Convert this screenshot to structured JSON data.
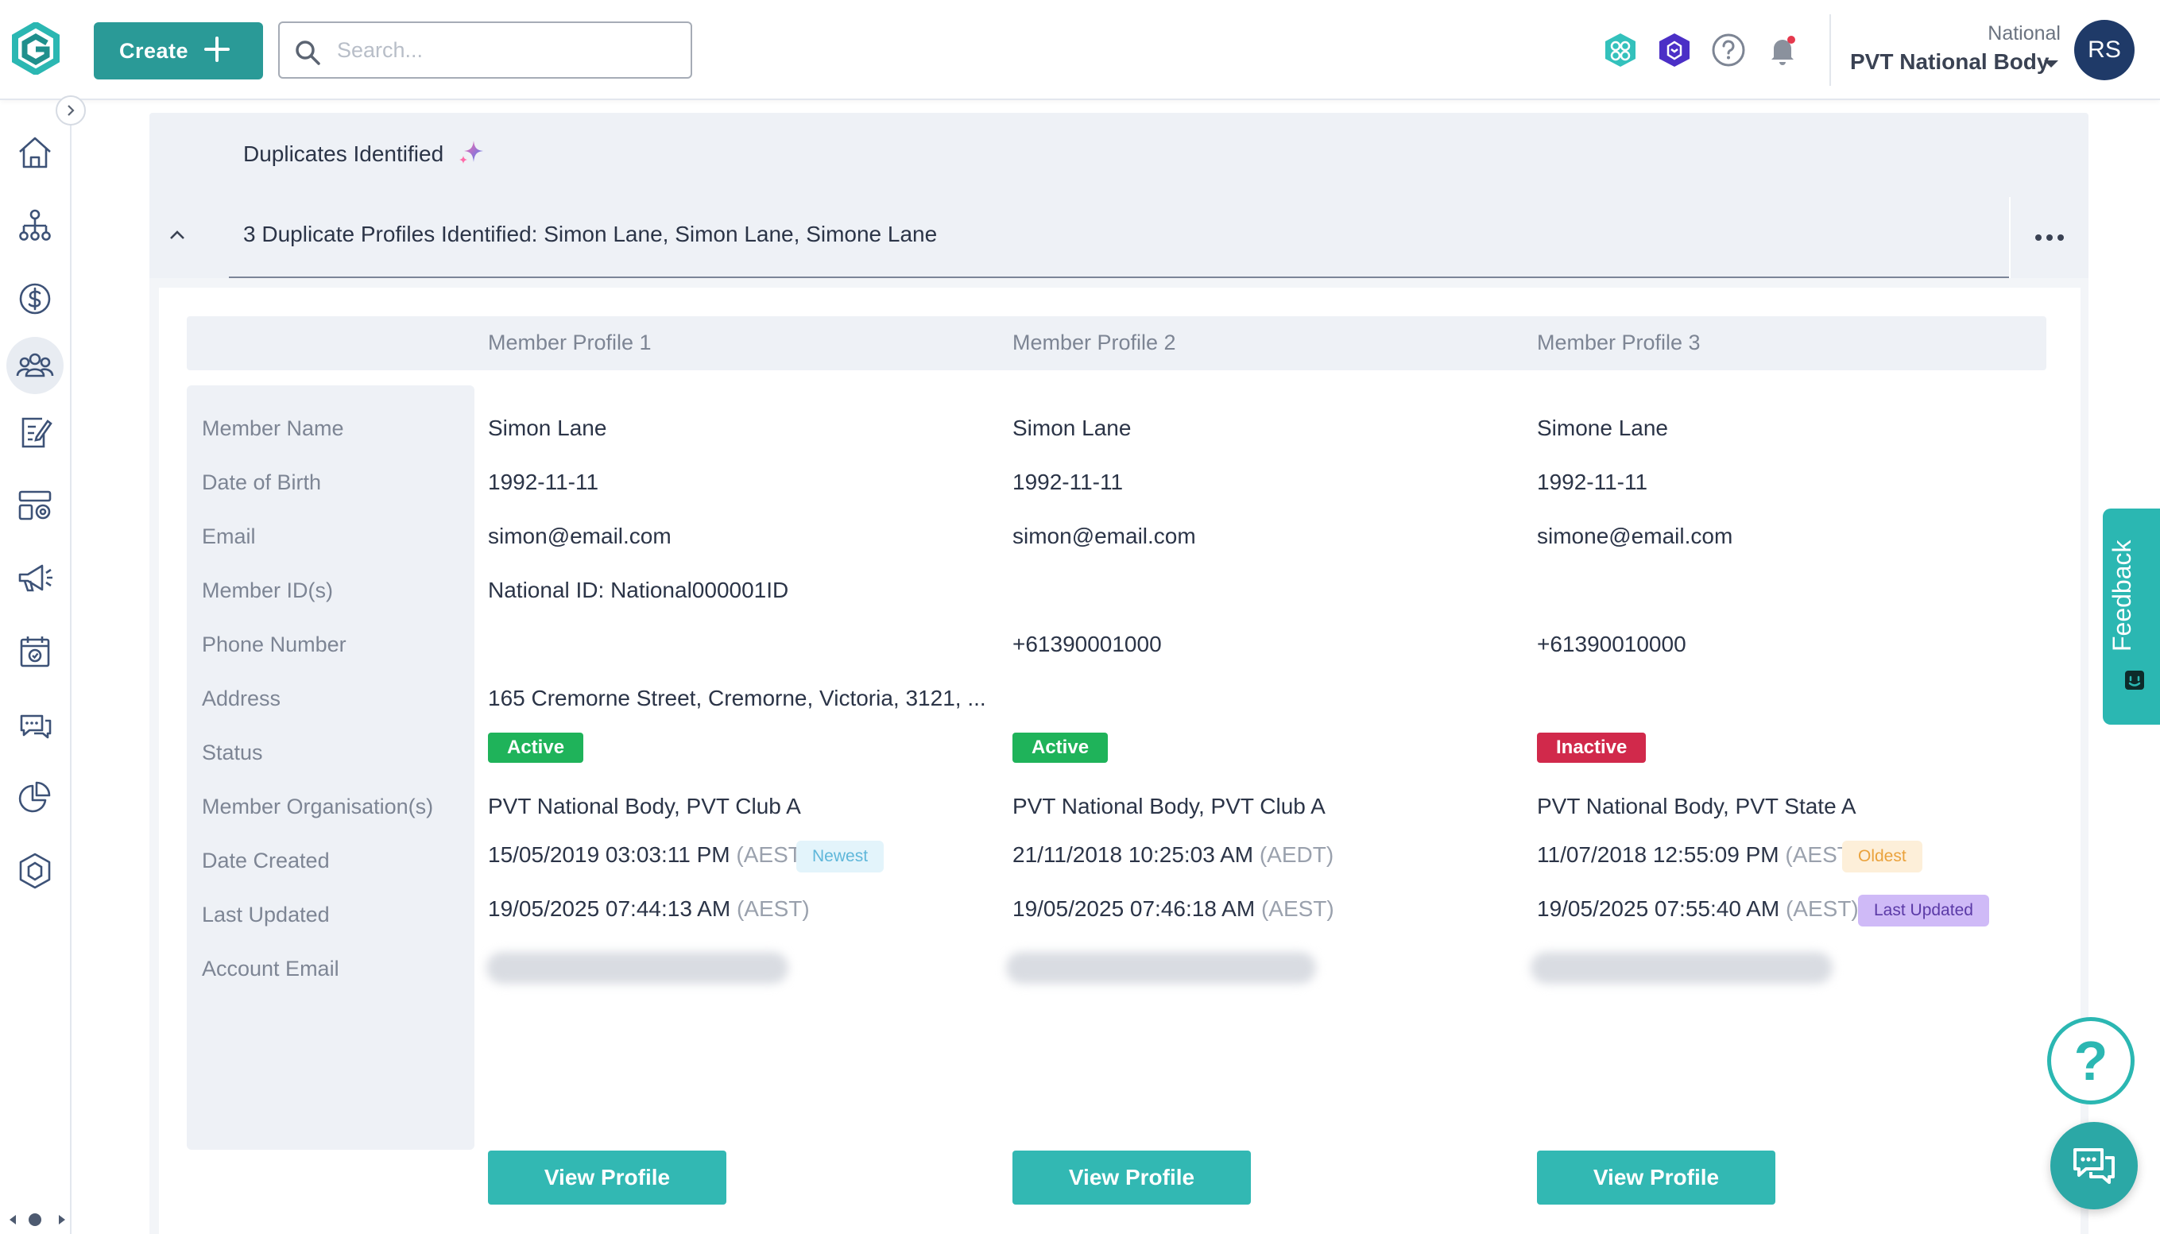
{
  "header": {
    "create_label": "Create",
    "search_placeholder": "Search...",
    "org_subtitle": "National",
    "org_name": "PVT National Body",
    "avatar_initials": "RS"
  },
  "duplicates": {
    "title": "Duplicates Identified",
    "section_title": "3 Duplicate Profiles Identified: Simon Lane, Simon Lane, Simone Lane"
  },
  "columns": [
    "Member Profile 1",
    "Member Profile 2",
    "Member Profile 3"
  ],
  "row_labels": {
    "name": "Member Name",
    "dob": "Date of Birth",
    "email": "Email",
    "member_ids": "Member ID(s)",
    "phone": "Phone Number",
    "address": "Address",
    "status": "Status",
    "orgs": "Member Organisation(s)",
    "created": "Date Created",
    "updated": "Last Updated",
    "account_email": "Account Email"
  },
  "profiles": [
    {
      "name": "Simon Lane",
      "dob": "1992-11-11",
      "email": "simon@email.com",
      "member_ids": "National ID: National000001ID",
      "phone": "",
      "address": "165 Cremorne Street, Cremorne, Victoria, 3121, ...",
      "status": "Active",
      "orgs": "PVT National Body, PVT Club A",
      "created": "15/05/2019 03:03:11 PM",
      "created_tz": "(AEST)",
      "created_tag": "Newest",
      "updated": "19/05/2025 07:44:13 AM",
      "updated_tz": "(AEST)",
      "updated_tag": "",
      "view_label": "View Profile"
    },
    {
      "name": "Simon Lane",
      "dob": "1992-11-11",
      "email": "simon@email.com",
      "member_ids": "",
      "phone": "+61390001000",
      "address": "",
      "status": "Active",
      "orgs": "PVT National Body, PVT Club A",
      "created": "21/11/2018 10:25:03 AM",
      "created_tz": "(AEDT)",
      "created_tag": "",
      "updated": "19/05/2025 07:46:18 AM",
      "updated_tz": "(AEST)",
      "updated_tag": "",
      "view_label": "View Profile"
    },
    {
      "name": "Simone Lane",
      "dob": "1992-11-11",
      "email": "simone@email.com",
      "member_ids": "",
      "phone": "+61390010000",
      "address": "",
      "status": "Inactive",
      "orgs": "PVT National Body, PVT State A",
      "created": "11/07/2018 12:55:09 PM",
      "created_tz": "(AEST)",
      "created_tag": "Oldest",
      "updated": "19/05/2025 07:55:40 AM",
      "updated_tz": "(AEST)",
      "updated_tag": "Last Updated",
      "view_label": "View Profile"
    }
  ],
  "feedback_label": "Feedback",
  "help_label": "?",
  "colors": {
    "brand_teal": "#2a9a97",
    "button_teal": "#32b8b3",
    "active_green": "#1fb35a",
    "inactive_red": "#d1294b",
    "avatar_navy": "#1f3a68"
  },
  "icons": {
    "nav": [
      "home-icon",
      "org-chart-icon",
      "dollar-icon",
      "members-icon",
      "form-edit-icon",
      "competitions-icon",
      "megaphone-icon",
      "calendar-icon",
      "chat-icon",
      "pie-chart-icon",
      "badge-icon"
    ],
    "top": [
      "apps-icon",
      "shield-icon",
      "help-icon",
      "bell-icon"
    ]
  }
}
